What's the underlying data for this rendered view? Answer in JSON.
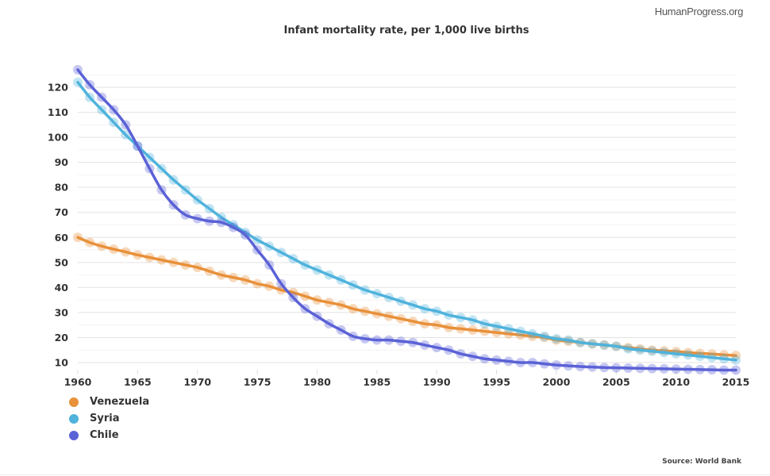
{
  "brand": "HumanProgress.org",
  "source": "Source: World Bank",
  "chart_data": {
    "type": "line",
    "title": "Infant mortality rate, per 1,000 live births",
    "xlabel": "",
    "ylabel": "",
    "xlim": [
      1960,
      2015
    ],
    "ylim": [
      10,
      127
    ],
    "grid": true,
    "legend_position": "bottom-left",
    "x_ticks": [
      "1960",
      "1965",
      "1970",
      "1975",
      "1980",
      "1985",
      "1990",
      "1995",
      "2000",
      "2005",
      "2010",
      "2015"
    ],
    "y_ticks": [
      "10",
      "20",
      "30",
      "40",
      "50",
      "60",
      "70",
      "80",
      "90",
      "100",
      "110",
      "120"
    ],
    "x": [
      1960,
      1961,
      1962,
      1963,
      1964,
      1965,
      1966,
      1967,
      1968,
      1969,
      1970,
      1971,
      1972,
      1973,
      1974,
      1975,
      1976,
      1977,
      1978,
      1979,
      1980,
      1981,
      1982,
      1983,
      1984,
      1985,
      1986,
      1987,
      1988,
      1989,
      1990,
      1991,
      1992,
      1993,
      1994,
      1995,
      1996,
      1997,
      1998,
      1999,
      2000,
      2001,
      2002,
      2003,
      2004,
      2005,
      2006,
      2007,
      2008,
      2009,
      2010,
      2011,
      2012,
      2013,
      2014,
      2015
    ],
    "series": [
      {
        "name": "Venezuela",
        "color": "#e8903a",
        "values": [
          60,
          58,
          56.5,
          55.3,
          54.2,
          53,
          52,
          51,
          50,
          49,
          48,
          46.5,
          45,
          44,
          43,
          41.5,
          40.5,
          39,
          38,
          36.5,
          35,
          34,
          33,
          31.5,
          30.5,
          29.5,
          28.5,
          27.5,
          26.5,
          25.5,
          25,
          24,
          23.5,
          23,
          22.5,
          22,
          21.5,
          21,
          20.5,
          20,
          19,
          18.5,
          18,
          17.5,
          17,
          16.5,
          16,
          15.5,
          15,
          14.7,
          14.4,
          14,
          13.7,
          13.4,
          13.1,
          12.8
        ]
      },
      {
        "name": "Syria",
        "color": "#4fb3dc",
        "values": [
          122,
          116,
          111,
          106,
          101,
          96.5,
          92,
          87.5,
          83,
          79,
          75,
          71.5,
          68,
          65,
          62,
          59,
          56.5,
          54,
          51.5,
          49,
          47,
          45,
          43,
          41,
          39,
          37.5,
          36,
          34.5,
          33,
          31.5,
          30.5,
          29,
          28,
          27,
          25.5,
          24.5,
          23.5,
          22.5,
          21.5,
          20.5,
          19.5,
          19,
          18,
          17.5,
          17,
          16.5,
          15.5,
          15,
          14.5,
          14,
          13.5,
          13,
          12.5,
          12,
          11.5,
          11
        ]
      },
      {
        "name": "Chile",
        "color": "#5b62d6",
        "values": [
          127,
          121,
          116,
          111,
          105,
          96.5,
          87.5,
          79,
          73,
          69,
          67.5,
          66.5,
          66,
          64,
          61,
          55,
          49,
          41.5,
          36,
          31.5,
          28.5,
          25.5,
          23,
          20.5,
          19.5,
          19,
          19,
          18.5,
          18,
          17,
          16,
          15,
          13.5,
          12.5,
          11.5,
          11,
          10.5,
          10,
          10,
          9.5,
          9,
          8.7,
          8.4,
          8.2,
          8,
          7.9,
          7.8,
          7.7,
          7.6,
          7.5,
          7.4,
          7.3,
          7.2,
          7.1,
          7,
          7
        ]
      }
    ]
  }
}
